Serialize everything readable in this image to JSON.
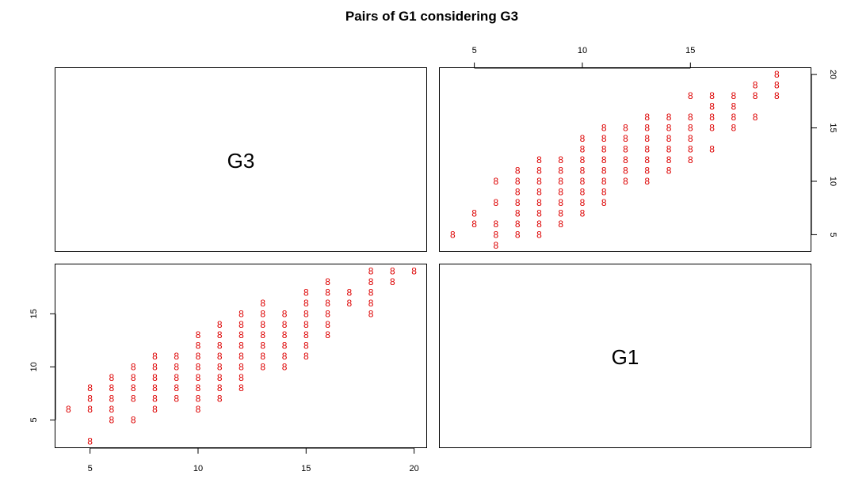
{
  "chart_data": {
    "type": "scatter",
    "matrix": "pairs",
    "title": "Pairs of G1 considering G3",
    "variables": [
      "G3",
      "G1"
    ],
    "marker_glyph": "8",
    "marker_color": "#dd0000",
    "panels": [
      {
        "name": "upper-right",
        "x_variable": "G1",
        "y_variable": "G3",
        "xlim": [
          3.4,
          20.6
        ],
        "ylim": [
          3.4,
          20.6
        ],
        "x_ticks": [
          5,
          10,
          15
        ],
        "y_ticks": [
          5,
          10,
          15,
          20
        ],
        "x_axis_side": "top",
        "y_axis_side": "right",
        "points": [
          [
            4,
            5
          ],
          [
            5,
            6
          ],
          [
            5,
            7
          ],
          [
            6,
            4
          ],
          [
            6,
            5
          ],
          [
            6,
            6
          ],
          [
            6,
            8
          ],
          [
            6,
            10
          ],
          [
            7,
            5
          ],
          [
            7,
            6
          ],
          [
            7,
            7
          ],
          [
            7,
            8
          ],
          [
            7,
            9
          ],
          [
            7,
            10
          ],
          [
            7,
            11
          ],
          [
            8,
            5
          ],
          [
            8,
            6
          ],
          [
            8,
            7
          ],
          [
            8,
            8
          ],
          [
            8,
            9
          ],
          [
            8,
            10
          ],
          [
            8,
            11
          ],
          [
            8,
            12
          ],
          [
            9,
            6
          ],
          [
            9,
            7
          ],
          [
            9,
            8
          ],
          [
            9,
            9
          ],
          [
            9,
            10
          ],
          [
            9,
            11
          ],
          [
            9,
            12
          ],
          [
            10,
            7
          ],
          [
            10,
            8
          ],
          [
            10,
            9
          ],
          [
            10,
            10
          ],
          [
            10,
            11
          ],
          [
            10,
            12
          ],
          [
            10,
            13
          ],
          [
            10,
            14
          ],
          [
            11,
            8
          ],
          [
            11,
            9
          ],
          [
            11,
            10
          ],
          [
            11,
            11
          ],
          [
            11,
            12
          ],
          [
            11,
            13
          ],
          [
            11,
            14
          ],
          [
            11,
            15
          ],
          [
            12,
            10
          ],
          [
            12,
            11
          ],
          [
            12,
            12
          ],
          [
            12,
            13
          ],
          [
            12,
            14
          ],
          [
            12,
            15
          ],
          [
            13,
            10
          ],
          [
            13,
            11
          ],
          [
            13,
            12
          ],
          [
            13,
            13
          ],
          [
            13,
            14
          ],
          [
            13,
            15
          ],
          [
            13,
            16
          ],
          [
            14,
            11
          ],
          [
            14,
            12
          ],
          [
            14,
            13
          ],
          [
            14,
            14
          ],
          [
            14,
            15
          ],
          [
            14,
            16
          ],
          [
            15,
            12
          ],
          [
            15,
            13
          ],
          [
            15,
            14
          ],
          [
            15,
            15
          ],
          [
            15,
            16
          ],
          [
            15,
            18
          ],
          [
            16,
            13
          ],
          [
            16,
            15
          ],
          [
            16,
            16
          ],
          [
            16,
            17
          ],
          [
            16,
            18
          ],
          [
            17,
            15
          ],
          [
            17,
            16
          ],
          [
            17,
            17
          ],
          [
            17,
            18
          ],
          [
            18,
            16
          ],
          [
            18,
            18
          ],
          [
            18,
            19
          ],
          [
            19,
            18
          ],
          [
            19,
            19
          ],
          [
            19,
            20
          ]
        ]
      },
      {
        "name": "lower-left",
        "x_variable": "G3",
        "y_variable": "G1",
        "xlim": [
          3.4,
          20.6
        ],
        "ylim": [
          2.35,
          19.65
        ],
        "x_ticks": [
          5,
          10,
          15,
          20
        ],
        "y_ticks": [
          5,
          10,
          15
        ],
        "x_axis_side": "bottom",
        "y_axis_side": "left",
        "points": [
          [
            4,
            6
          ],
          [
            5,
            3
          ],
          [
            5,
            6
          ],
          [
            5,
            7
          ],
          [
            5,
            8
          ],
          [
            6,
            5
          ],
          [
            6,
            6
          ],
          [
            6,
            7
          ],
          [
            6,
            8
          ],
          [
            6,
            9
          ],
          [
            7,
            5
          ],
          [
            7,
            7
          ],
          [
            7,
            8
          ],
          [
            7,
            9
          ],
          [
            7,
            10
          ],
          [
            8,
            6
          ],
          [
            8,
            7
          ],
          [
            8,
            8
          ],
          [
            8,
            9
          ],
          [
            8,
            10
          ],
          [
            8,
            11
          ],
          [
            9,
            7
          ],
          [
            9,
            8
          ],
          [
            9,
            9
          ],
          [
            9,
            10
          ],
          [
            9,
            11
          ],
          [
            10,
            6
          ],
          [
            10,
            7
          ],
          [
            10,
            8
          ],
          [
            10,
            9
          ],
          [
            10,
            10
          ],
          [
            10,
            11
          ],
          [
            10,
            12
          ],
          [
            10,
            13
          ],
          [
            11,
            7
          ],
          [
            11,
            8
          ],
          [
            11,
            9
          ],
          [
            11,
            10
          ],
          [
            11,
            11
          ],
          [
            11,
            12
          ],
          [
            11,
            13
          ],
          [
            11,
            14
          ],
          [
            12,
            8
          ],
          [
            12,
            9
          ],
          [
            12,
            10
          ],
          [
            12,
            11
          ],
          [
            12,
            12
          ],
          [
            12,
            13
          ],
          [
            12,
            14
          ],
          [
            12,
            15
          ],
          [
            13,
            10
          ],
          [
            13,
            11
          ],
          [
            13,
            12
          ],
          [
            13,
            13
          ],
          [
            13,
            14
          ],
          [
            13,
            15
          ],
          [
            13,
            16
          ],
          [
            14,
            10
          ],
          [
            14,
            11
          ],
          [
            14,
            12
          ],
          [
            14,
            13
          ],
          [
            14,
            14
          ],
          [
            14,
            15
          ],
          [
            15,
            11
          ],
          [
            15,
            12
          ],
          [
            15,
            13
          ],
          [
            15,
            14
          ],
          [
            15,
            15
          ],
          [
            15,
            16
          ],
          [
            15,
            17
          ],
          [
            16,
            13
          ],
          [
            16,
            14
          ],
          [
            16,
            15
          ],
          [
            16,
            16
          ],
          [
            16,
            17
          ],
          [
            16,
            18
          ],
          [
            17,
            16
          ],
          [
            17,
            17
          ],
          [
            18,
            15
          ],
          [
            18,
            16
          ],
          [
            18,
            17
          ],
          [
            18,
            18
          ],
          [
            18,
            19
          ],
          [
            19,
            18
          ],
          [
            19,
            19
          ],
          [
            20,
            19
          ]
        ]
      }
    ],
    "grid": false,
    "legend": "none"
  }
}
